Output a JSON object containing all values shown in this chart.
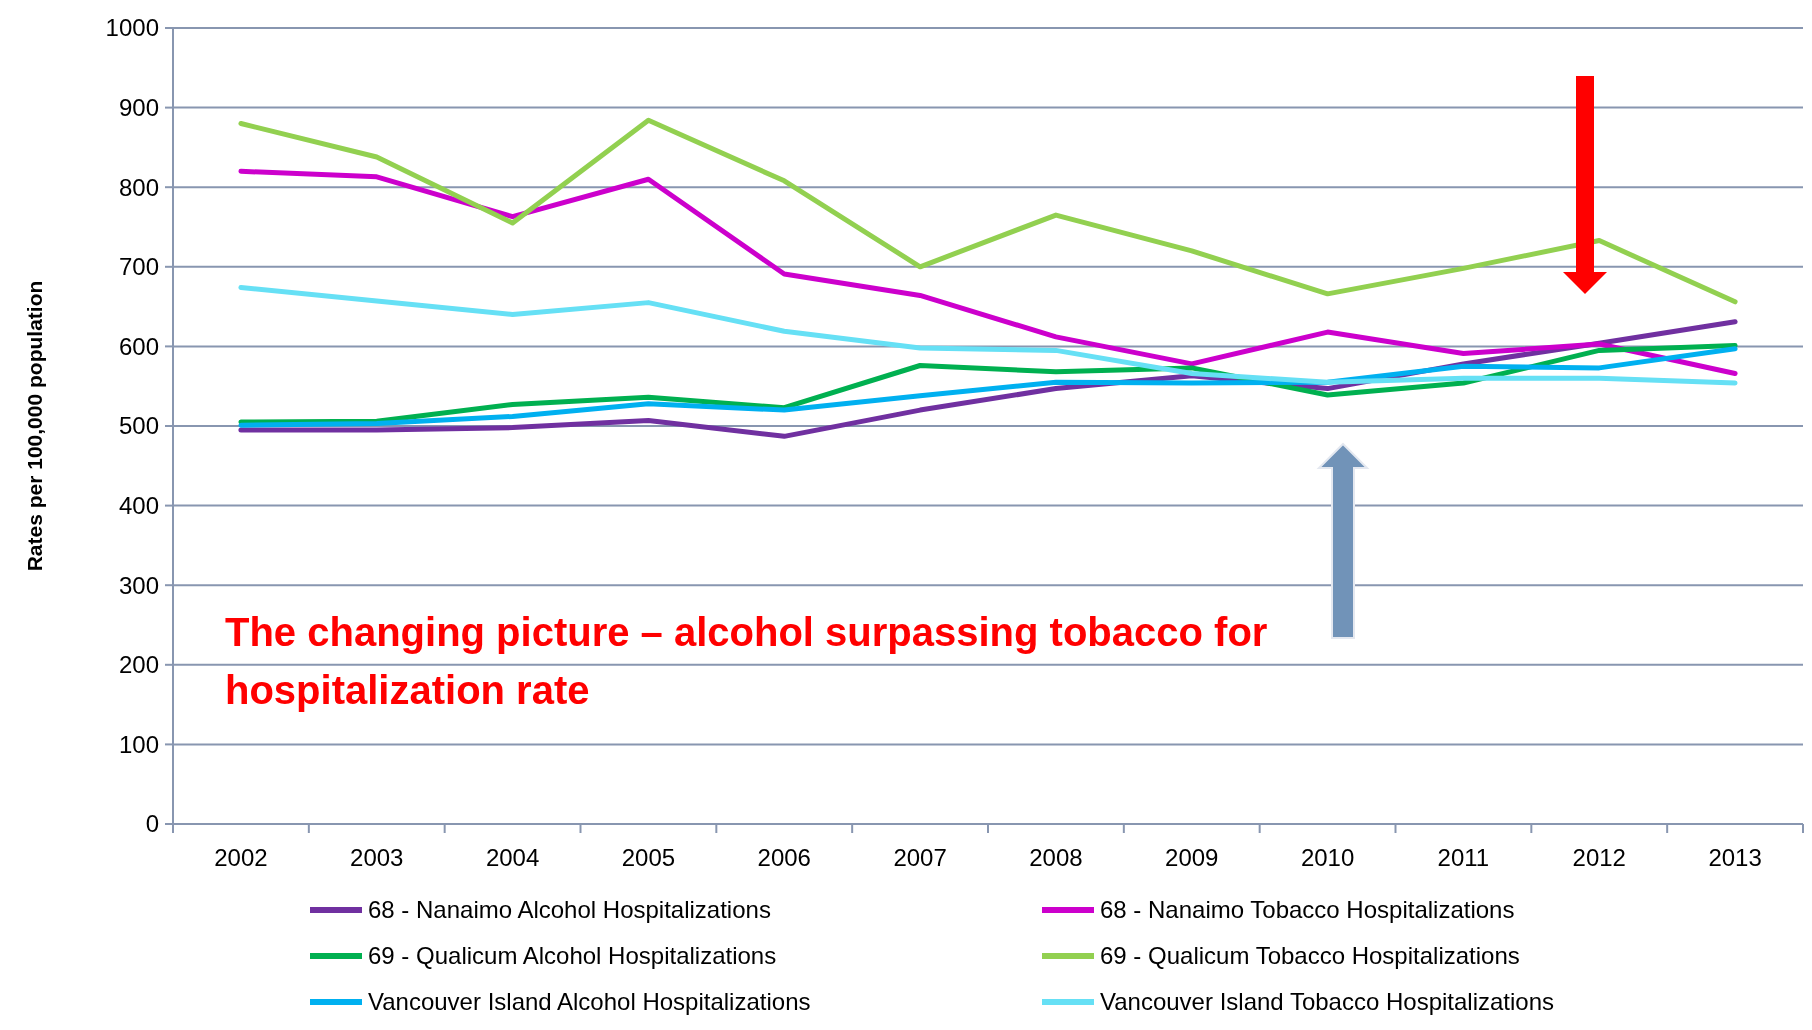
{
  "chart_data": {
    "type": "line",
    "ylabel": "Rates per 100,000 population",
    "categories": [
      "2002",
      "2003",
      "2004",
      "2005",
      "2006",
      "2007",
      "2008",
      "2009",
      "2010",
      "2011",
      "2012",
      "2013"
    ],
    "ylim": [
      0,
      1000
    ],
    "yticks": [
      0,
      100,
      200,
      300,
      400,
      500,
      600,
      700,
      800,
      900,
      1000
    ],
    "grid": "y",
    "legend": "bottom",
    "marker": "none",
    "annotations": [
      "The changing picture – alcohol surpassing tobacco for hospitalization rate"
    ],
    "series": [
      {
        "name": "68 - Nanaimo Alcohol Hospitalizations",
        "color": "#7030a0",
        "values": [
          495,
          495,
          498,
          507,
          487,
          520,
          547,
          563,
          547,
          578,
          604,
          631
        ]
      },
      {
        "name": "68 - Nanaimo Tobacco Hospitalizations",
        "color": "#cc00cc",
        "values": [
          820,
          813,
          763,
          810,
          691,
          664,
          612,
          578,
          618,
          591,
          603,
          566
        ]
      },
      {
        "name": "69 - Qualicum Alcohol Hospitalizations",
        "color": "#00b050",
        "values": [
          505,
          506,
          527,
          536,
          523,
          576,
          568,
          573,
          539,
          554,
          595,
          601
        ]
      },
      {
        "name": "69 - Qualicum Tobacco Hospitalizations",
        "color": "#92d050",
        "values": [
          880,
          838,
          755,
          884,
          808,
          700,
          765,
          720,
          666,
          698,
          733,
          656
        ]
      },
      {
        "name": "Vancouver Island Alcohol Hospitalizations",
        "color": "#00b0f0",
        "values": [
          501,
          503,
          512,
          528,
          520,
          538,
          555,
          554,
          555,
          575,
          573,
          597
        ]
      },
      {
        "name": "Vancouver Island Tobacco Hospitalizations",
        "color": "#66e0f5",
        "values": [
          674,
          657,
          640,
          655,
          619,
          598,
          595,
          566,
          555,
          560,
          560,
          554
        ]
      }
    ]
  }
}
